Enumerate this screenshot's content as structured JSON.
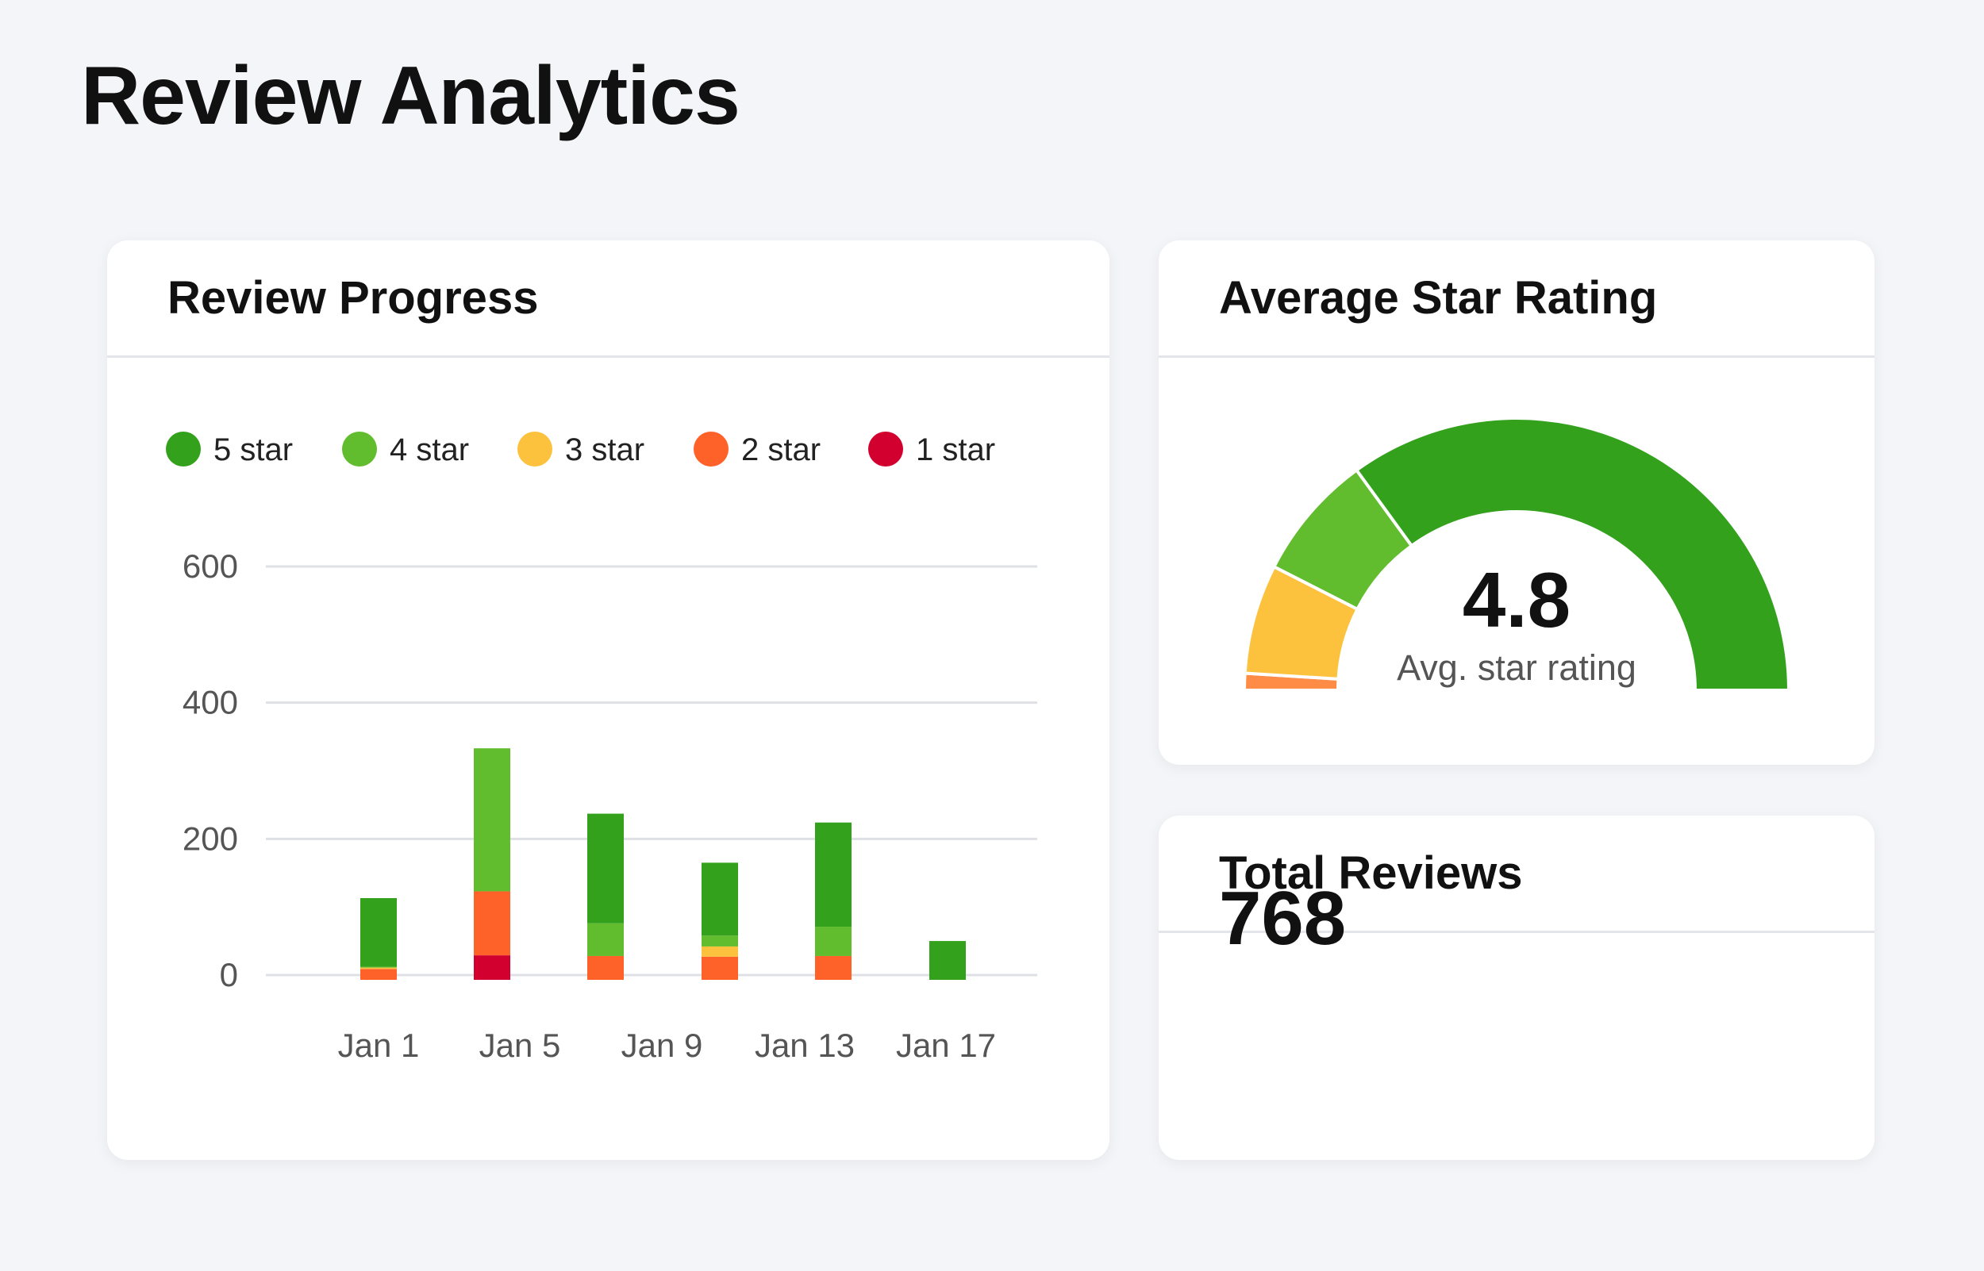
{
  "page_title": "Review Analytics",
  "progress_card": {
    "title": "Review Progress"
  },
  "rating_card": {
    "title": "Average Star Rating",
    "value": "4.8",
    "caption": "Avg. star rating"
  },
  "total_card": {
    "title": "Total Reviews",
    "value": "768"
  },
  "colors": {
    "5 star": "#33a11c",
    "4 star": "#62bd2e",
    "3 star": "#fcc23e",
    "2 star": "#ff6229",
    "1 star": "#d1002f",
    "gauge_2_star": "#ff8c46"
  },
  "chart_data": [
    {
      "type": "bar",
      "stacked": true,
      "title": "Review Progress",
      "legend": [
        "5 star",
        "4 star",
        "3 star",
        "2 star",
        "1 star"
      ],
      "legend_placement": "top-left",
      "x_tick_labels": [
        "Jan 1",
        "Jan 5",
        "Jan 9",
        "Jan 13",
        "Jan 17"
      ],
      "y_ticks": [
        "0",
        "200",
        "400",
        "600"
      ],
      "ylim": [
        0,
        600
      ],
      "grid": true,
      "series": [
        {
          "name": "5 star",
          "values": [
            101,
            0,
            161,
            107,
            153,
            50
          ]
        },
        {
          "name": "4 star",
          "values": [
            1,
            210,
            48,
            16,
            43,
            0
          ]
        },
        {
          "name": "3 star",
          "values": [
            2,
            0,
            0,
            15,
            0,
            0
          ]
        },
        {
          "name": "2 star",
          "values": [
            9,
            94,
            28,
            27,
            28,
            0
          ]
        },
        {
          "name": "1 star",
          "values": [
            0,
            29,
            0,
            0,
            0,
            0
          ]
        }
      ]
    },
    {
      "type": "gauge",
      "value": 4.8,
      "segments_percent": [
        {
          "name": "2 star",
          "value": 2
        },
        {
          "name": "3 star",
          "value": 13
        },
        {
          "name": "4 star",
          "value": 15
        },
        {
          "name": "5 star",
          "value": 70
        }
      ]
    }
  ]
}
